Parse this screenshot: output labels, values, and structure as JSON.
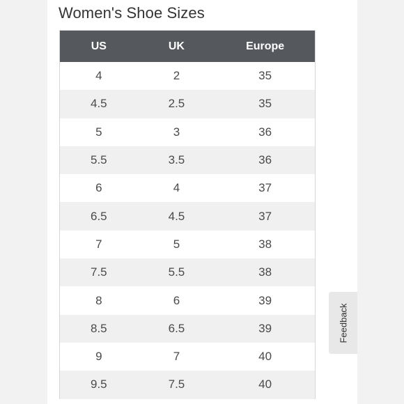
{
  "page": {
    "title": "Women's Shoe Sizes"
  },
  "table": {
    "headers": {
      "us": "US",
      "uk": "UK",
      "europe": "Europe"
    },
    "rows": [
      {
        "us": "4",
        "uk": "2",
        "europe": "35"
      },
      {
        "us": "4.5",
        "uk": "2.5",
        "europe": "35"
      },
      {
        "us": "5",
        "uk": "3",
        "europe": "36"
      },
      {
        "us": "5.5",
        "uk": "3.5",
        "europe": "36"
      },
      {
        "us": "6",
        "uk": "4",
        "europe": "37"
      },
      {
        "us": "6.5",
        "uk": "4.5",
        "europe": "37"
      },
      {
        "us": "7",
        "uk": "5",
        "europe": "38"
      },
      {
        "us": "7.5",
        "uk": "5.5",
        "europe": "38"
      },
      {
        "us": "8",
        "uk": "6",
        "europe": "39"
      },
      {
        "us": "8.5",
        "uk": "6.5",
        "europe": "39"
      },
      {
        "us": "9",
        "uk": "7",
        "europe": "40"
      },
      {
        "us": "9.5",
        "uk": "7.5",
        "europe": "40"
      }
    ]
  },
  "feedback": {
    "label": "Feedback"
  },
  "colors": {
    "header_background": "#55595e",
    "header_text": "#ffffff",
    "stripe_row": "#f0f0f0",
    "page_background": "#f2f2f2",
    "card_background": "#ffffff"
  }
}
